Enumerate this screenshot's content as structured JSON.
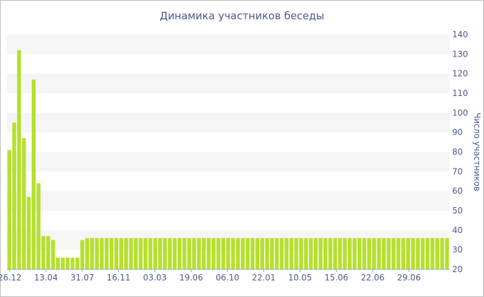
{
  "chart_data": {
    "type": "bar",
    "title": "Динамика участников беседы",
    "xlabel": "",
    "ylabel": "Число участников",
    "ylim": [
      20,
      140
    ],
    "yticks": [
      20,
      30,
      40,
      50,
      60,
      70,
      80,
      90,
      100,
      110,
      120,
      130,
      140
    ],
    "x_tick_labels": [
      "26.12",
      "13.04",
      "31.07",
      "16.11",
      "03.03",
      "19.06",
      "06.10",
      "22.01",
      "10.05",
      "15.06",
      "22.06",
      "29.06"
    ],
    "grid": "horizontal bands",
    "y_axis_position": "right",
    "colors": {
      "bar": "#b5e02e",
      "text": "#4a5a8a",
      "band": "#f5f5f5"
    },
    "values": [
      81,
      95,
      132,
      87,
      57,
      117,
      64,
      37,
      37,
      35,
      26,
      26,
      26,
      26,
      26,
      35,
      36,
      36,
      36,
      36,
      36,
      36,
      36,
      36,
      36,
      36,
      36,
      36,
      36,
      36,
      36,
      36,
      36,
      36,
      36,
      36,
      36,
      36,
      36,
      36,
      36,
      36,
      36,
      36,
      36,
      36,
      36,
      36,
      36,
      36,
      36,
      36,
      36,
      36,
      36,
      36,
      36,
      36,
      36,
      36,
      36,
      36,
      36,
      36,
      36,
      36,
      36,
      36,
      36,
      36,
      36,
      36,
      36,
      36,
      36,
      36,
      36,
      36,
      36,
      36,
      36,
      36,
      36,
      36,
      36,
      36,
      36,
      36,
      36,
      36,
      36
    ]
  }
}
